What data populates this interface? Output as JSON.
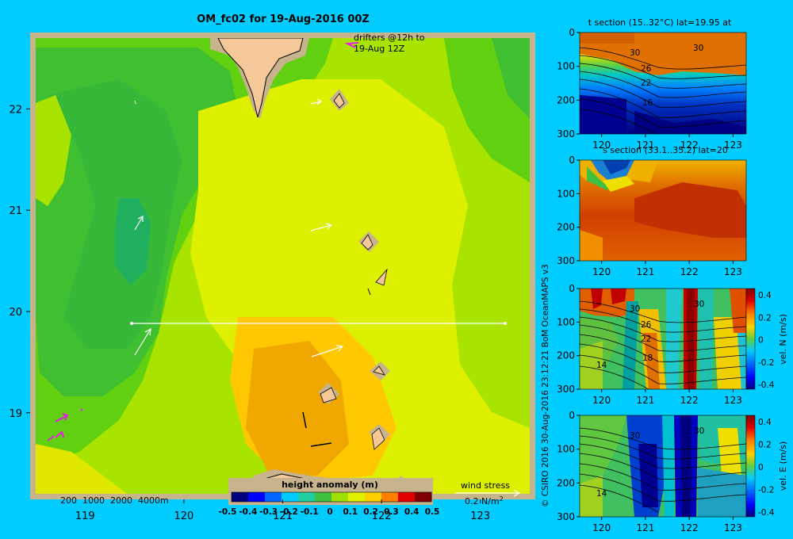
{
  "colors": {
    "background": "#00ccff",
    "frame": "#c8b48c",
    "land": "#f5c89a",
    "coast": "#000000",
    "section_line": "#ffffff",
    "drifter": "#e61ee6",
    "wind": "#ffffff"
  },
  "map": {
    "title": "OM_fc02 for 19-Aug-2016 00Z",
    "drifter_note_line1": "drifters @12h to",
    "drifter_note_line2": "19-Aug 12Z",
    "depth_legend": "200  1000  2000  4000m",
    "colorbar_title": "height anomaly (m)",
    "wind_label": "wind stress",
    "wind_scale": "0.2 N/m",
    "wind_scale_sup": "2",
    "section_line_lat": 20,
    "section_line_lon": [
      119.5,
      123.2
    ]
  },
  "credit": "© CSIRO 2016   30-Aug-2016 23:12:21 BoM OceanMAPS v3",
  "panels": {
    "t": {
      "title": "t section (15..32°C) lat=19.95 at",
      "contour_labels": [
        "30",
        "30",
        "26",
        "22",
        "16"
      ]
    },
    "s": {
      "title": "s section (33.1..35.2) lat=20"
    },
    "vn": {
      "contour_labels": [
        "30",
        "30",
        "26",
        "22",
        "18",
        "14"
      ],
      "cb_label": "vel. N (m/s)"
    },
    "ve": {
      "contour_labels": [
        "30",
        "30",
        "14"
      ],
      "cb_label": "vel. E (m/s)"
    }
  },
  "chart_data": [
    {
      "type": "heatmap",
      "title": "OM_fc02 for 19-Aug-2016 00Z",
      "variable": "height anomaly (m)",
      "xlabel": "",
      "ylabel": "",
      "xlim": [
        118.5,
        123.5
      ],
      "ylim": [
        18.2,
        22.7
      ],
      "x_ticks": [
        119,
        120,
        121,
        122,
        123
      ],
      "y_ticks": [
        19,
        20,
        21,
        22
      ],
      "x_tick_labels": [
        "119",
        "120",
        "121",
        "122",
        "123"
      ],
      "y_tick_labels": [
        "19",
        "20",
        "21",
        "22"
      ],
      "colorbar_ticks": [
        "-0.5",
        "-0.4",
        "-0.3",
        "-0.2",
        "-0.1",
        "0",
        "0.1",
        "0.2",
        "0.3",
        "0.4",
        "0.5"
      ],
      "colorbar_range": [
        -0.5,
        0.5
      ],
      "colorbar_colors": [
        "#00007f",
        "#0000ff",
        "#0066ff",
        "#00ccff",
        "#20d0a0",
        "#40c040",
        "#a0e000",
        "#e0f000",
        "#ffd000",
        "#ff8000",
        "#e00000",
        "#7f0000"
      ]
    },
    {
      "type": "heatmap",
      "title": "t section (15..32°C) lat=19.95 at",
      "xlim": [
        119.5,
        123.3
      ],
      "ylim": [
        300,
        0
      ],
      "x_ticks": [
        120,
        121,
        122,
        123
      ],
      "y_ticks": [
        0,
        100,
        200,
        300
      ],
      "x_tick_labels": [
        "120",
        "121",
        "122",
        "123"
      ],
      "y_tick_labels": [
        "0",
        "100",
        "200",
        "300"
      ],
      "range": [
        15,
        32
      ]
    },
    {
      "type": "heatmap",
      "title": "s section (33.1..35.2) lat=20",
      "xlim": [
        119.5,
        123.3
      ],
      "ylim": [
        300,
        0
      ],
      "x_ticks": [
        120,
        121,
        122,
        123
      ],
      "y_ticks": [
        0,
        100,
        200,
        300
      ],
      "x_tick_labels": [
        "120",
        "121",
        "122",
        "123"
      ],
      "y_tick_labels": [
        "0",
        "100",
        "200",
        "300"
      ],
      "range": [
        33.1,
        35.2
      ]
    },
    {
      "type": "heatmap",
      "title": "vel. N (m/s)",
      "xlim": [
        119.5,
        123.3
      ],
      "ylim": [
        300,
        0
      ],
      "x_ticks": [
        120,
        121,
        122,
        123
      ],
      "y_ticks": [
        0,
        100,
        200,
        300
      ],
      "x_tick_labels": [
        "120",
        "121",
        "122",
        "123"
      ],
      "y_tick_labels": [
        "0",
        "100",
        "200",
        "300"
      ],
      "range": [
        -0.4,
        0.4
      ],
      "colorbar_ticks": [
        "0.4",
        "0.2",
        "0",
        "-0.2",
        "-0.4"
      ]
    },
    {
      "type": "heatmap",
      "title": "vel. E (m/s)",
      "xlim": [
        119.5,
        123.3
      ],
      "ylim": [
        300,
        0
      ],
      "x_ticks": [
        120,
        121,
        122,
        123
      ],
      "y_ticks": [
        0,
        100,
        200,
        300
      ],
      "x_tick_labels": [
        "120",
        "121",
        "122",
        "123"
      ],
      "y_tick_labels": [
        "0",
        "100",
        "200",
        "300"
      ],
      "range": [
        -0.4,
        0.4
      ],
      "colorbar_ticks": [
        "0.4",
        "0.2",
        "0",
        "-0.2",
        "-0.4"
      ]
    }
  ]
}
